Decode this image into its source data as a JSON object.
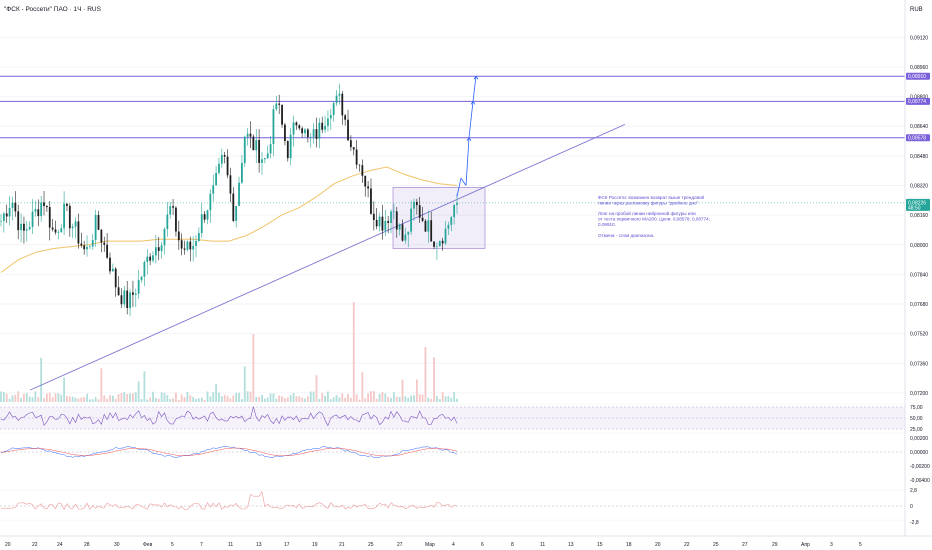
{
  "title": "\"ФСК - Россети\" ПАО · 1Ч · RUS",
  "currency": "RUB",
  "chart_data": {
    "type": "candlestick",
    "price_axis_ticks": [
      "0,09120",
      "0,08960",
      "0,08800",
      "0,08640",
      "0,08480",
      "0,08320",
      "0,08160",
      "0,08000",
      "0,07840",
      "0,07680",
      "0,07520",
      "0,07360",
      "0,07200"
    ],
    "price_range": [
      0.0714,
      0.0923
    ],
    "last_price": {
      "value": 0.08226,
      "label": "0,08226",
      "countdown": "48:50"
    },
    "levels": [
      {
        "value": 0.0891,
        "label": "0,08910",
        "color": "#7b61d9"
      },
      {
        "value": 0.08774,
        "label": "0,08774",
        "color": "#7b61d9"
      },
      {
        "value": 0.08578,
        "label": "0,08578",
        "color": "#7b61d9"
      }
    ],
    "x_ticks": [
      "20",
      "22",
      "24",
      "28",
      "30",
      "Фев",
      "5",
      "7",
      "11",
      "13",
      "17",
      "19",
      "21",
      "25",
      "27",
      "Мар",
      "4",
      "6",
      "8",
      "11",
      "13",
      "15",
      "18",
      "20",
      "22",
      "25",
      "27",
      "29",
      "Апр",
      "3",
      "5"
    ],
    "key_prices": [
      0.0813,
      0.0825,
      0.0805,
      0.0815,
      0.0825,
      0.0805,
      0.0818,
      0.0808,
      0.0795,
      0.0812,
      0.0795,
      0.0775,
      0.0768,
      0.078,
      0.0795,
      0.0802,
      0.082,
      0.0798,
      0.0798,
      0.0815,
      0.0828,
      0.0848,
      0.0815,
      0.086,
      0.0852,
      0.0845,
      0.0878,
      0.085,
      0.087,
      0.0855,
      0.0862,
      0.0875,
      0.0878,
      0.0855,
      0.0842,
      0.0818,
      0.0812,
      0.082,
      0.08,
      0.0822,
      0.0812,
      0.0802,
      0.0808,
      0.0826
    ],
    "ma_prices": [
      0.0785,
      0.0792,
      0.0796,
      0.0798,
      0.0799,
      0.08,
      0.0802,
      0.0802,
      0.0802,
      0.0803,
      0.0803,
      0.0803,
      0.0802,
      0.0802,
      0.0805,
      0.081,
      0.0816,
      0.082,
      0.0826,
      0.0833,
      0.0837,
      0.084,
      0.0842,
      0.0838,
      0.0835,
      0.0833,
      0.0832
    ],
    "trendline": {
      "from": [
        0,
        0.07215
      ],
      "to": [
        1,
        0.0865
      ]
    },
    "range_box": {
      "top": 0.0831,
      "bottom": 0.0798
    },
    "projection": [
      0.0826,
      0.0836,
      0.0832,
      0.08578,
      0.08774,
      0.0891
    ],
    "rsi": {
      "upper": "75,00",
      "mid": "50,00",
      "lower": "25,00",
      "upper_value": 75,
      "mid_value": 50,
      "lower_value": 25
    },
    "macd_ticks": [
      "0,00200",
      "0,00000",
      "-0,00200",
      "-0,00400"
    ],
    "osc_ticks": [
      "2,8",
      "0",
      "-2,8"
    ]
  },
  "annotation": [
    "ФСК Россети: возможен возврат выше трендовой",
    "линии через распаковку фигуры \"двойное дно\".",
    "",
    "Лонг на пробой линии нейронной фигуры или",
    "от теста первичного MA200. Цели: 0,08578; 0,08774;",
    "0,08910.",
    "",
    "Отмена - слом диапазона."
  ],
  "colors": {
    "up": "#26a69a",
    "down": "#1e1e1e",
    "ma": "#f0c36a",
    "trend": "#7e78d2",
    "level": "#7b61d9",
    "rsi": "#7e57c2",
    "macd": "#2962ff",
    "signal": "#ef5350",
    "osc": "#ef9a9a"
  }
}
